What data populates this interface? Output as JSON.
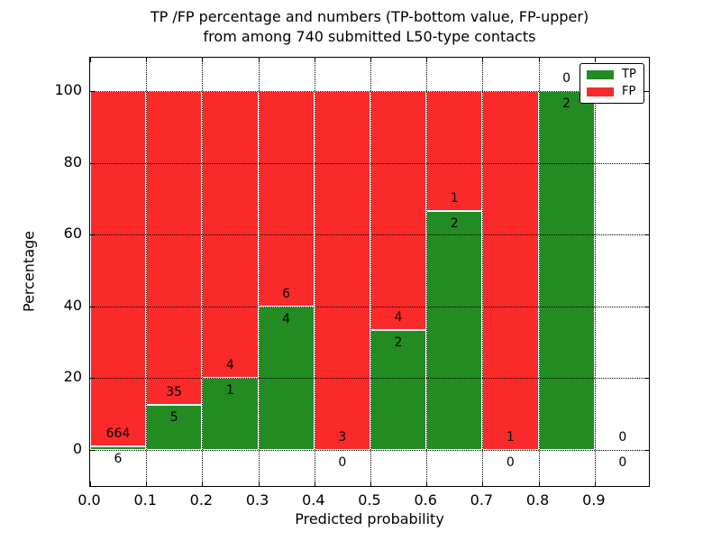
{
  "title": {
    "line1": "TP /FP percentage and numbers (TP-bottom value, FP-upper)",
    "line2": "from among 740 submitted L50-type contacts"
  },
  "chart_data": {
    "type": "bar",
    "stacked": true,
    "normalized": "each bin scaled to 100%",
    "title": "TP /FP percentage and numbers (TP-bottom value, FP-upper) from among 740 submitted L50-type contacts",
    "xlabel": "Predicted probability",
    "ylabel": "Percentage",
    "total_contacts": 740,
    "bin_edges": [
      0.0,
      0.1,
      0.2,
      0.3,
      0.4,
      0.5,
      0.6,
      0.7,
      0.8,
      0.9,
      1.0
    ],
    "x_tick_labels": [
      "0.0",
      "0.1",
      "0.2",
      "0.3",
      "0.4",
      "0.5",
      "0.6",
      "0.7",
      "0.8",
      "0.9"
    ],
    "y_ticks": [
      0,
      20,
      40,
      60,
      80,
      100
    ],
    "xlim": [
      0.0,
      1.0
    ],
    "ylim": [
      -10.5,
      109.5
    ],
    "grid": true,
    "grid_style": "dotted",
    "series": [
      {
        "name": "TP",
        "color": "#228b22",
        "counts": [
          6,
          5,
          1,
          4,
          0,
          2,
          2,
          0,
          2,
          0
        ]
      },
      {
        "name": "FP",
        "color": "#fa2a2a",
        "counts": [
          664,
          35,
          4,
          6,
          3,
          4,
          1,
          1,
          0,
          0
        ]
      }
    ],
    "tp_percent_by_bin": [
      0.9,
      12.5,
      20.0,
      40.0,
      0.0,
      33.3,
      66.7,
      0.0,
      100.0,
      null
    ],
    "legend": {
      "position": "upper right",
      "entries": [
        {
          "label": "TP",
          "color": "#228b22"
        },
        {
          "label": "FP",
          "color": "#fa2a2a"
        }
      ]
    }
  }
}
